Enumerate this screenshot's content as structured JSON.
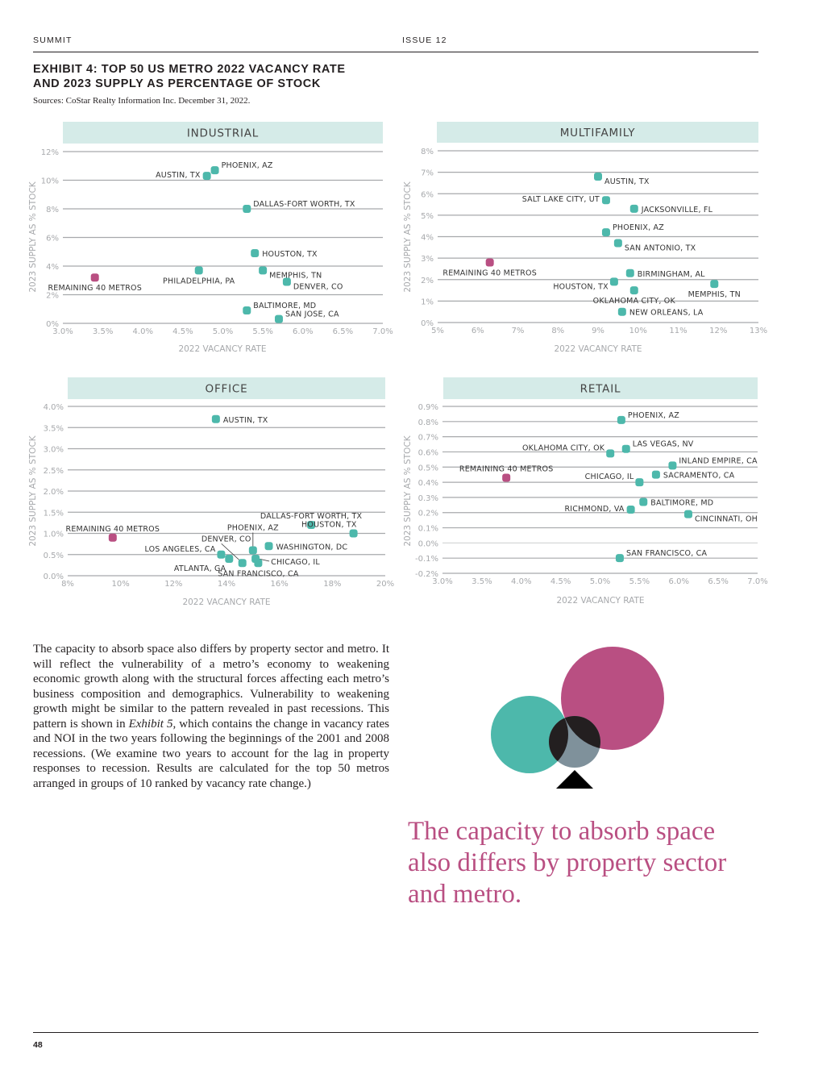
{
  "header": {
    "publication": "SUMMIT",
    "issue": "ISSUE 12"
  },
  "exhibit": {
    "title_line1": "EXHIBIT 4: TOP 50 US METRO 2022 VACANCY RATE",
    "title_line2": "AND 2023 SUPPLY AS PERCENTAGE OF STOCK",
    "source": "Sources: CoStar Realty Information Inc. December 31, 2022."
  },
  "colors": {
    "metro": "#4db8ab",
    "remaining": "#b94f82",
    "band": "#d5ebe8",
    "grid": "#a7a9ac",
    "pull_quote": "#b94f82"
  },
  "chart_data": [
    {
      "type": "scatter",
      "title": "INDUSTRIAL",
      "xlabel": "2022 VACANCY RATE",
      "ylabel": "2023 SUPPLY AS % STOCK",
      "xlim": [
        3.0,
        7.0
      ],
      "ylim": [
        0,
        12
      ],
      "xticks": [
        3.0,
        3.5,
        4.0,
        4.5,
        5.0,
        5.5,
        6.0,
        6.5,
        7.0
      ],
      "xtick_labels": [
        "3.0%",
        "3.5%",
        "4.0%",
        "4.5%",
        "5.0%",
        "5.5%",
        "6.0%",
        "6.5%",
        "7.0%"
      ],
      "yticks": [
        0,
        2,
        4,
        6,
        8,
        10,
        12
      ],
      "ytick_labels": [
        "0%",
        "2%",
        "4%",
        "6%",
        "8%",
        "10%",
        "12%"
      ],
      "grid": true,
      "points": [
        {
          "label": "PHOENIX, AZ",
          "x": 4.9,
          "y": 10.7,
          "group": "metro",
          "label_pos": "right-up"
        },
        {
          "label": "AUSTIN, TX",
          "x": 4.8,
          "y": 10.3,
          "group": "metro",
          "label_pos": "left"
        },
        {
          "label": "DALLAS-FORT WORTH, TX",
          "x": 5.3,
          "y": 8.0,
          "group": "metro",
          "label_pos": "right-up"
        },
        {
          "label": "HOUSTON, TX",
          "x": 5.4,
          "y": 4.9,
          "group": "metro",
          "label_pos": "right"
        },
        {
          "label": "PHILADELPHIA, PA",
          "x": 4.7,
          "y": 3.7,
          "group": "metro",
          "label_pos": "below"
        },
        {
          "label": "MEMPHIS, TN",
          "x": 5.5,
          "y": 3.7,
          "group": "metro",
          "label_pos": "right-down"
        },
        {
          "label": "DENVER, CO",
          "x": 5.8,
          "y": 2.9,
          "group": "metro",
          "label_pos": "right-down"
        },
        {
          "label": "REMAINING 40 METROS",
          "x": 3.4,
          "y": 3.2,
          "group": "remaining",
          "label_pos": "below"
        },
        {
          "label": "BALTIMORE, MD",
          "x": 5.3,
          "y": 0.9,
          "group": "metro",
          "label_pos": "right-up"
        },
        {
          "label": "SAN JOSE, CA",
          "x": 5.7,
          "y": 0.3,
          "group": "metro",
          "label_pos": "right-up"
        }
      ]
    },
    {
      "type": "scatter",
      "title": "MULTIFAMILY",
      "xlabel": "2022 VACANCY RATE",
      "ylabel": "2023 SUPPLY AS % STOCK",
      "xlim": [
        5,
        13
      ],
      "ylim": [
        0,
        8
      ],
      "xticks": [
        5,
        6,
        7,
        8,
        9,
        10,
        11,
        12,
        13
      ],
      "xtick_labels": [
        "5%",
        "6%",
        "7%",
        "8%",
        "9%",
        "10%",
        "11%",
        "12%",
        "13%"
      ],
      "yticks": [
        0,
        1,
        2,
        3,
        4,
        5,
        6,
        7,
        8
      ],
      "ytick_labels": [
        "0%",
        "1%",
        "2%",
        "3%",
        "4%",
        "5%",
        "6%",
        "7%",
        "8%"
      ],
      "grid": true,
      "points": [
        {
          "label": "AUSTIN, TX",
          "x": 9.0,
          "y": 6.8,
          "group": "metro",
          "label_pos": "right-down"
        },
        {
          "label": "SALT LAKE CITY, UT",
          "x": 9.2,
          "y": 5.7,
          "group": "metro",
          "label_pos": "left"
        },
        {
          "label": "JACKSONVILLE, FL",
          "x": 9.9,
          "y": 5.3,
          "group": "metro",
          "label_pos": "right"
        },
        {
          "label": "PHOENIX, AZ",
          "x": 9.2,
          "y": 4.2,
          "group": "metro",
          "label_pos": "right-up"
        },
        {
          "label": "SAN ANTONIO, TX",
          "x": 9.5,
          "y": 3.7,
          "group": "metro",
          "label_pos": "right-down"
        },
        {
          "label": "REMAINING 40 METROS",
          "x": 6.3,
          "y": 2.8,
          "group": "remaining",
          "label_pos": "below"
        },
        {
          "label": "BIRMINGHAM, AL",
          "x": 9.8,
          "y": 2.3,
          "group": "metro",
          "label_pos": "right"
        },
        {
          "label": "HOUSTON, TX",
          "x": 9.4,
          "y": 1.9,
          "group": "metro",
          "label_pos": "left-down"
        },
        {
          "label": "MEMPHIS, TN",
          "x": 11.9,
          "y": 1.8,
          "group": "metro",
          "label_pos": "below"
        },
        {
          "label": "OKLAHOMA CITY, OK",
          "x": 9.9,
          "y": 1.5,
          "group": "metro",
          "label_pos": "below"
        },
        {
          "label": "NEW ORLEANS, LA",
          "x": 9.6,
          "y": 0.5,
          "group": "metro",
          "label_pos": "right"
        }
      ]
    },
    {
      "type": "scatter",
      "title": "OFFICE",
      "xlabel": "2022 VACANCY RATE",
      "ylabel": "2023 SUPPLY AS % STOCK",
      "xlim": [
        8,
        20
      ],
      "ylim": [
        0,
        4
      ],
      "xticks": [
        8,
        10,
        12,
        14,
        16,
        18,
        20
      ],
      "xtick_labels": [
        "8%",
        "10%",
        "12%",
        "14%",
        "16%",
        "18%",
        "20%"
      ],
      "yticks": [
        0,
        0.5,
        1.0,
        1.5,
        2.0,
        2.5,
        3.0,
        3.5,
        4.0
      ],
      "ytick_labels": [
        "0.0%",
        "0.5%",
        "1.0%",
        "1.5%",
        "2.0%",
        "2.5%",
        "3.0%",
        "3.5%",
        "4.0%"
      ],
      "grid": true,
      "points": [
        {
          "label": "AUSTIN, TX",
          "x": 13.6,
          "y": 3.7,
          "group": "metro",
          "label_pos": "right"
        },
        {
          "label": "DALLAS-FORT WORTH, TX",
          "x": 17.2,
          "y": 1.2,
          "group": "metro",
          "label_pos": "above"
        },
        {
          "label": "HOUSTON, TX",
          "x": 18.8,
          "y": 1.0,
          "group": "metro",
          "label_pos": "above-left"
        },
        {
          "label": "REMAINING 40 METROS",
          "x": 9.7,
          "y": 0.9,
          "group": "remaining",
          "label_pos": "above"
        },
        {
          "label": "PHOENIX, AZ",
          "x": 15.0,
          "y": 0.6,
          "group": "metro",
          "label_pos": "leader-up"
        },
        {
          "label": "WASHINGTON, DC",
          "x": 15.6,
          "y": 0.7,
          "group": "metro",
          "label_pos": "right"
        },
        {
          "label": "LOS ANGELES, CA",
          "x": 13.8,
          "y": 0.5,
          "group": "metro",
          "label_pos": "left-up"
        },
        {
          "label": "ATLANTA, GA",
          "x": 14.1,
          "y": 0.4,
          "group": "metro",
          "label_pos": "below-left"
        },
        {
          "label": "DENVER, CO",
          "x": 14.6,
          "y": 0.3,
          "group": "metro",
          "label_pos": "leader-upleft"
        },
        {
          "label": "CHICAGO, IL",
          "x": 15.1,
          "y": 0.4,
          "group": "metro",
          "label_pos": "leader-right"
        },
        {
          "label": "SAN FRANCISCO, CA",
          "x": 15.2,
          "y": 0.3,
          "group": "metro",
          "label_pos": "below"
        }
      ]
    },
    {
      "type": "scatter",
      "title": "RETAIL",
      "xlabel": "2022 VACANCY RATE",
      "ylabel": "2023 SUPPLY AS % STOCK",
      "xlim": [
        3.0,
        7.0
      ],
      "ylim": [
        -0.2,
        0.9
      ],
      "xticks": [
        3.0,
        3.5,
        4.0,
        4.5,
        5.0,
        5.5,
        6.0,
        6.5,
        7.0
      ],
      "xtick_labels": [
        "3.0%",
        "3.5%",
        "4.0%",
        "4.5%",
        "5.0%",
        "5.5%",
        "6.0%",
        "6.5%",
        "7.0%"
      ],
      "yticks": [
        -0.2,
        -0.1,
        0.0,
        0.1,
        0.2,
        0.3,
        0.4,
        0.5,
        0.6,
        0.7,
        0.8,
        0.9
      ],
      "ytick_labels": [
        "-0.2%",
        "-0.1%",
        "0.0%",
        "0.1%",
        "0.2%",
        "0.3%",
        "0.4%",
        "0.5%",
        "0.6%",
        "0.7%",
        "0.8%",
        "0.9%"
      ],
      "grid": true,
      "points": [
        {
          "label": "PHOENIX, AZ",
          "x": 5.27,
          "y": 0.81,
          "group": "metro",
          "label_pos": "right-up"
        },
        {
          "label": "LAS VEGAS, NV",
          "x": 5.33,
          "y": 0.62,
          "group": "metro",
          "label_pos": "right-up"
        },
        {
          "label": "OKLAHOMA CITY, OK",
          "x": 5.13,
          "y": 0.59,
          "group": "metro",
          "label_pos": "left-up"
        },
        {
          "label": "INLAND EMPIRE, CA",
          "x": 5.92,
          "y": 0.51,
          "group": "metro",
          "label_pos": "right-up"
        },
        {
          "label": "SACRAMENTO, CA",
          "x": 5.71,
          "y": 0.45,
          "group": "metro",
          "label_pos": "right"
        },
        {
          "label": "REMAINING 40 METROS",
          "x": 3.81,
          "y": 0.43,
          "group": "remaining",
          "label_pos": "above"
        },
        {
          "label": "CHICAGO, IL",
          "x": 5.5,
          "y": 0.4,
          "group": "metro",
          "label_pos": "left-up"
        },
        {
          "label": "BALTIMORE, MD",
          "x": 5.55,
          "y": 0.27,
          "group": "metro",
          "label_pos": "right"
        },
        {
          "label": "RICHMOND, VA",
          "x": 5.39,
          "y": 0.22,
          "group": "metro",
          "label_pos": "left"
        },
        {
          "label": "CINCINNATI, OH",
          "x": 6.12,
          "y": 0.19,
          "group": "metro",
          "label_pos": "right-down"
        },
        {
          "label": "SAN FRANCISCO, CA",
          "x": 5.25,
          "y": -0.1,
          "group": "metro",
          "label_pos": "right-up"
        }
      ]
    }
  ],
  "body": {
    "paragraph_before_italic": "The capacity to absorb space also differs by property sector and metro. It will reflect the vulnerability of a metro’s economy to weakening economic growth along with the structural forces affecting each metro’s business composition and demographics. Vulnerability to weakening growth might be similar to the pattern revealed in past recessions. This pattern is shown in ",
    "italic_ref": "Exhibit 5",
    "paragraph_after_italic": ", which contains the change in vacancy rates and NOI in the two years following the beginnings of the 2001 and 2008 recessions. (We examine two years to account for the lag in property responses to recession. Results are calculated for the top 50 metros arranged in groups of 10 ranked by vacancy rate change.)"
  },
  "pull_quote": "The capacity to absorb space also differs by property sector and metro.",
  "footer": {
    "page_number": "48"
  }
}
